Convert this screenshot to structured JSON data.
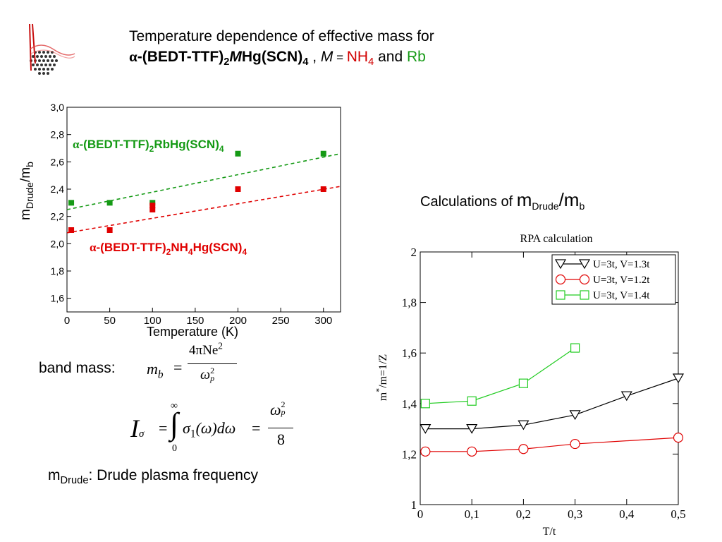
{
  "header": {
    "title_line1": "Temperature dependence of effective mass for",
    "title_alpha": "α",
    "title_compound_a": "-(BEDT-TTF)",
    "title_sub_2": "2",
    "title_M": "M",
    "title_compound_b": "Hg(SCN)",
    "title_sub_4": "4",
    "title_sep": " , ",
    "title_Meq_M": "M",
    "title_eq": " = ",
    "title_NH": "NH",
    "title_NH_sub": "4",
    "title_and": " and ",
    "title_Rb": "Rb"
  },
  "colors": {
    "green": "#159a15",
    "red": "#e00000",
    "black": "#000000"
  },
  "left_labels": {
    "green_series": [
      "α",
      "-(BEDT-TTF)",
      "2",
      "RbHg(SCN)",
      "4"
    ],
    "red_series": [
      "α",
      "-(BEDT-TTF)",
      "2",
      "NH",
      "4",
      "Hg(SCN)",
      "4"
    ],
    "ylabel": [
      "m",
      "Drude",
      "/m",
      "b"
    ],
    "xlabel": "Temperature (K)"
  },
  "band_mass": {
    "label": "band mass:",
    "lhs_m": "m",
    "lhs_b": "b",
    "eq": "=",
    "numerator": "4πNe",
    "numerator_sup": "2",
    "denominator": "ω",
    "denominator_sup": "2",
    "denominator_sub": "p"
  },
  "integral": {
    "lhs_I": "I",
    "lhs_sigma": "σ",
    "eq": "=",
    "upper": "∞",
    "lower": "0",
    "sign": "∫",
    "integrand": "σ",
    "integrand_sub": "1",
    "integrand_rest": "(ω)dω",
    "eq2": "=",
    "numerator": "ω",
    "numerator_sup": "2",
    "numerator_sub": "p",
    "denominator": "8"
  },
  "drude_note": {
    "m": "m",
    "sub": "Drude",
    "text": ": Drude plasma frequency"
  },
  "calc_title": {
    "prefix": "Calculations of ",
    "m": "m",
    "sub1": "Drude",
    "mid": "/m",
    "sub2": "b"
  },
  "chart_data": [
    {
      "type": "scatter",
      "xlabel": "Temperature (K)",
      "ylabel": "mDrude/mb",
      "xlim": [
        0,
        320
      ],
      "ylim": [
        1.5,
        3.0
      ],
      "xticks": [
        0,
        50,
        100,
        150,
        200,
        250,
        300
      ],
      "xtick_labels": [
        "0",
        "50",
        "100",
        "150",
        "200",
        "250",
        "300"
      ],
      "yticks": [
        1.6,
        1.8,
        2.0,
        2.2,
        2.4,
        2.6,
        2.8,
        3.0
      ],
      "ytick_labels": [
        "1,6",
        "1,8",
        "2,0",
        "2,2",
        "2,4",
        "2,6",
        "2,8",
        "3,0"
      ],
      "grid": false,
      "series": [
        {
          "name": "α-(BEDT-TTF)2RbHg(SCN)4",
          "color": "#159a15",
          "x": [
            5,
            50,
            100,
            200,
            300
          ],
          "y": [
            2.3,
            2.3,
            2.3,
            2.66,
            2.66
          ],
          "trend": {
            "x": [
              0,
              320
            ],
            "y": [
              2.25,
              2.66
            ]
          }
        },
        {
          "name": "α-(BEDT-TTF)2NH4Hg(SCN)4",
          "color": "#e00000",
          "x": [
            5,
            50,
            100,
            100,
            200,
            300
          ],
          "y": [
            2.1,
            2.1,
            2.25,
            2.28,
            2.4,
            2.4
          ],
          "trend": {
            "x": [
              0,
              320
            ],
            "y": [
              2.08,
              2.42
            ]
          }
        }
      ]
    },
    {
      "type": "line",
      "title": "RPA calculation",
      "xlabel": "T/t",
      "ylabel": "m*/m=1/Z",
      "xlim": [
        0,
        0.5
      ],
      "ylim": [
        1,
        2
      ],
      "xticks": [
        0,
        0.1,
        0.2,
        0.3,
        0.4,
        0.5
      ],
      "xtick_labels": [
        "0",
        "0,1",
        "0,2",
        "0,3",
        "0,4",
        "0,5"
      ],
      "yticks": [
        1,
        1.2,
        1.4,
        1.6,
        1.8,
        2
      ],
      "ytick_labels": [
        "1",
        "1,2",
        "1,4",
        "1,6",
        "1,8",
        "2"
      ],
      "grid": false,
      "legend_position": "top-right",
      "series": [
        {
          "name": "U=3t, V=1.3t",
          "color": "#000000",
          "marker": "triangle-down",
          "x": [
            0.01,
            0.1,
            0.2,
            0.3,
            0.4,
            0.5
          ],
          "y": [
            1.3,
            1.3,
            1.315,
            1.355,
            1.43,
            1.5
          ]
        },
        {
          "name": "U=3t, V=1.2t",
          "color": "#e00000",
          "marker": "circle",
          "x": [
            0.01,
            0.1,
            0.2,
            0.3,
            0.5
          ],
          "y": [
            1.21,
            1.21,
            1.22,
            1.24,
            1.265
          ]
        },
        {
          "name": "U=3t, V=1.4t",
          "color": "#22cc22",
          "marker": "square",
          "x": [
            0.01,
            0.1,
            0.2,
            0.3
          ],
          "y": [
            1.4,
            1.41,
            1.48,
            1.62
          ]
        }
      ]
    }
  ]
}
